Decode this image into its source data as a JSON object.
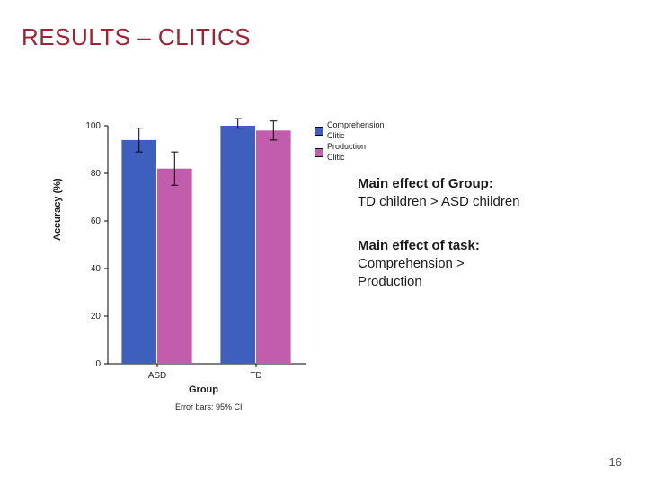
{
  "slide": {
    "title": "RESULTS –  CLITICS",
    "title_color": "#a12133",
    "page_number": "16"
  },
  "chart": {
    "type": "bar",
    "categories": [
      "ASD",
      "TD"
    ],
    "series": [
      {
        "name": "Comprehension Clitic",
        "color": "#3f5fbf",
        "values": [
          94,
          101
        ],
        "err": [
          5,
          2
        ]
      },
      {
        "name": "Production Clitic",
        "color": "#c25cad",
        "values": [
          82,
          98
        ],
        "err": [
          7,
          4
        ]
      }
    ],
    "ylabel": "Accuracy (%)",
    "xlabel": "Group",
    "ylim": [
      0,
      100
    ],
    "ytick_step": 20,
    "errorbar_note": "Error bars: 95% CI",
    "background_color": "#ffffff",
    "axis_color": "#000000",
    "bar_group_width": 0.72,
    "label_fontsize": 11,
    "tick_fontsize": 10,
    "legend_fontsize": 9
  },
  "text": {
    "group_heading": "Main effect of Group:",
    "group_line": "TD children > ASD children",
    "task_heading": "Main effect of task:",
    "task_line1": "Comprehension >",
    "task_line2": "Production"
  }
}
